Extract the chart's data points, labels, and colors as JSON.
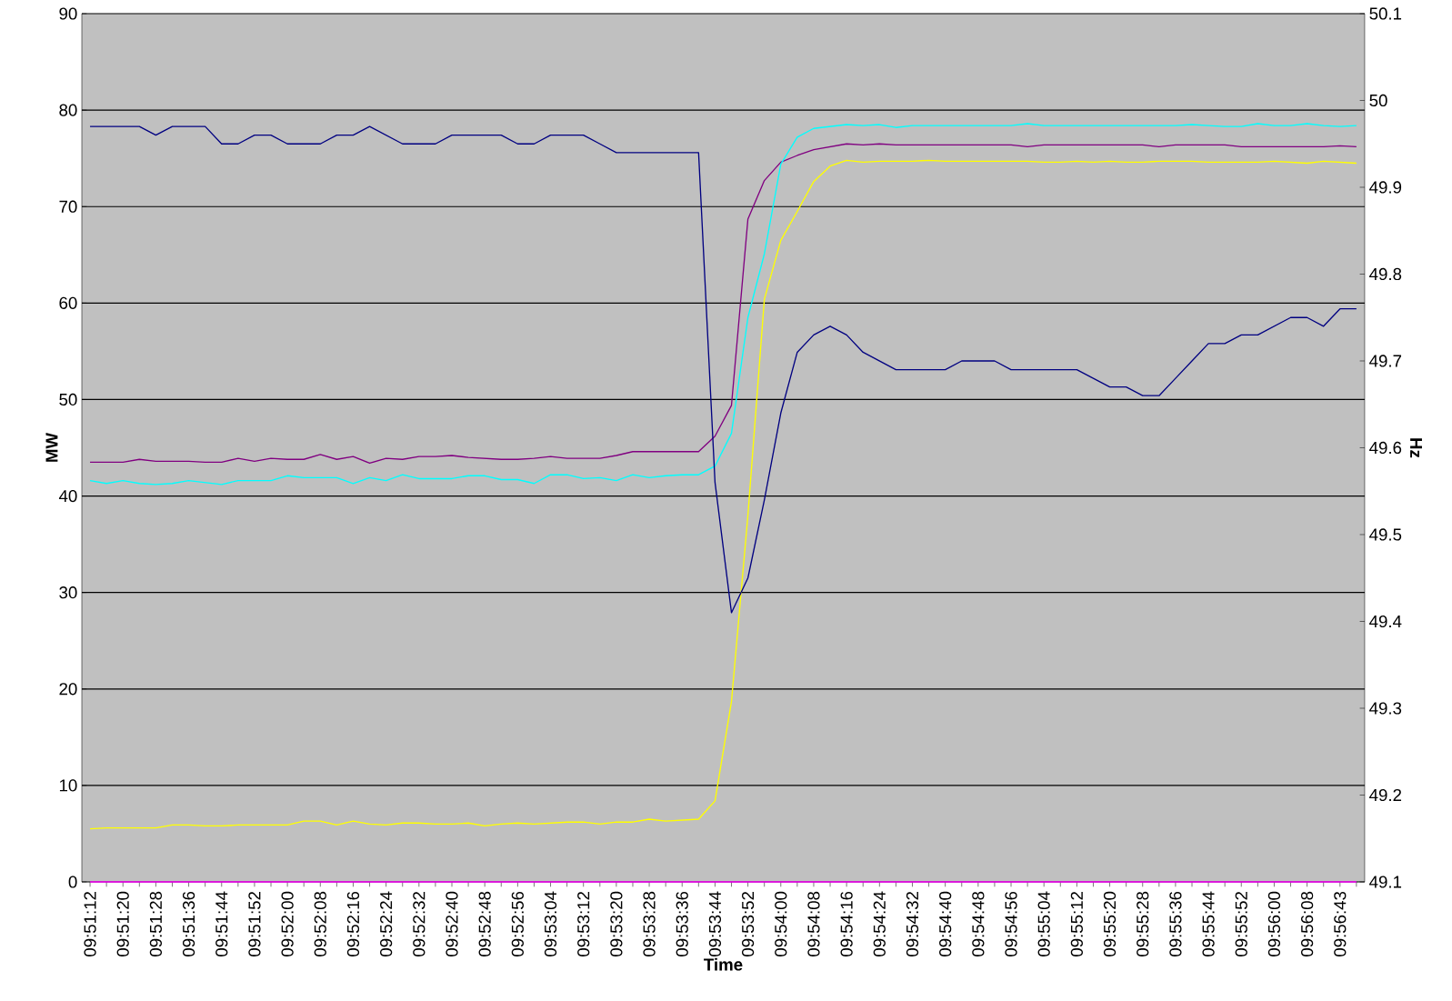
{
  "chart_data": {
    "type": "line",
    "xlabel": "Time",
    "ylabel": "MW",
    "y2label": "Hz",
    "categories": [
      "09:51:12",
      null,
      "09:51:20",
      null,
      "09:51:28",
      null,
      "09:51:36",
      null,
      "09:51:44",
      null,
      "09:51:52",
      null,
      "09:52:00",
      null,
      "09:52:08",
      null,
      "09:52:16",
      null,
      "09:52:24",
      null,
      "09:52:32",
      null,
      "09:52:40",
      null,
      "09:52:48",
      null,
      "09:52:56",
      null,
      "09:53:04",
      null,
      "09:53:12",
      null,
      "09:53:20",
      null,
      "09:53:28",
      null,
      "09:53:36",
      null,
      "09:53:44",
      null,
      "09:53:52",
      null,
      "09:54:00",
      null,
      "09:54:08",
      null,
      "09:54:16",
      null,
      "09:54:24",
      null,
      "09:54:32",
      null,
      "09:54:40",
      null,
      "09:54:48",
      null,
      "09:54:56",
      null,
      "09:55:04",
      null,
      "09:55:12",
      null,
      "09:55:20",
      null,
      "09:55:28",
      null,
      "09:55:36",
      null,
      "09:55:44",
      null,
      "09:55:52",
      null,
      "09:56:00",
      null,
      "09:56:08",
      null,
      "09:56:43",
      null
    ],
    "ylim": [
      0,
      90
    ],
    "yticks": [
      0,
      10,
      20,
      30,
      40,
      50,
      60,
      70,
      80,
      90
    ],
    "y2lim": [
      49.1,
      50.1
    ],
    "y2ticks": [
      49.1,
      49.2,
      49.3,
      49.4,
      49.5,
      49.6,
      49.7,
      49.8,
      49.9,
      50,
      50.1
    ],
    "grid": "y",
    "marker": "none",
    "line_style": "solid",
    "series": [
      {
        "color": "#000080",
        "axis": "y2",
        "values": [
          49.97,
          49.97,
          49.97,
          49.97,
          49.96,
          49.97,
          49.97,
          49.97,
          49.95,
          49.95,
          49.96,
          49.96,
          49.95,
          49.95,
          49.95,
          49.96,
          49.96,
          49.97,
          49.96,
          49.95,
          49.95,
          49.95,
          49.96,
          49.96,
          49.96,
          49.96,
          49.95,
          49.95,
          49.96,
          49.96,
          49.96,
          49.95,
          49.94,
          49.94,
          49.94,
          49.94,
          49.94,
          49.94,
          49.56,
          49.41,
          49.45,
          49.54,
          49.64,
          49.71,
          49.73,
          49.74,
          49.73,
          49.71,
          49.7,
          49.69,
          49.69,
          49.69,
          49.69,
          49.7,
          49.7,
          49.7,
          49.69,
          49.69,
          49.69,
          49.69,
          49.69,
          49.68,
          49.67,
          49.67,
          49.66,
          49.66,
          49.68,
          49.7,
          49.72,
          49.72,
          49.73,
          49.73,
          49.74,
          49.75,
          49.75,
          49.74,
          49.76,
          49.76
        ]
      },
      {
        "color": "#800080",
        "values": [
          43.5,
          43.5,
          43.5,
          43.8,
          43.6,
          43.6,
          43.6,
          43.5,
          43.5,
          43.9,
          43.6,
          43.9,
          43.8,
          43.8,
          44.3,
          43.8,
          44.1,
          43.4,
          43.9,
          43.8,
          44.1,
          44.1,
          44.2,
          44.0,
          43.9,
          43.8,
          43.8,
          43.9,
          44.1,
          43.9,
          43.9,
          43.9,
          44.2,
          44.6,
          44.6,
          44.6,
          44.6,
          44.6,
          46.2,
          49.4,
          68.7,
          72.7,
          74.6,
          75.3,
          75.9,
          76.2,
          76.5,
          76.4,
          76.5,
          76.4,
          76.4,
          76.4,
          76.4,
          76.4,
          76.4,
          76.4,
          76.4,
          76.2,
          76.4,
          76.4,
          76.4,
          76.4,
          76.4,
          76.4,
          76.4,
          76.2,
          76.4,
          76.4,
          76.4,
          76.4,
          76.2,
          76.2,
          76.2,
          76.2,
          76.2,
          76.2,
          76.3,
          76.2
        ]
      },
      {
        "color": "#00ffff",
        "values": [
          41.6,
          41.3,
          41.6,
          41.3,
          41.2,
          41.3,
          41.6,
          41.4,
          41.2,
          41.6,
          41.6,
          41.6,
          42.1,
          41.9,
          41.9,
          41.9,
          41.3,
          41.9,
          41.6,
          42.2,
          41.8,
          41.8,
          41.8,
          42.1,
          42.1,
          41.7,
          41.7,
          41.3,
          42.2,
          42.2,
          41.8,
          41.9,
          41.6,
          42.2,
          41.9,
          42.1,
          42.2,
          42.2,
          43.1,
          46.5,
          58.5,
          65.1,
          74.4,
          77.2,
          78.1,
          78.3,
          78.5,
          78.4,
          78.5,
          78.2,
          78.4,
          78.4,
          78.4,
          78.4,
          78.4,
          78.4,
          78.4,
          78.6,
          78.4,
          78.4,
          78.4,
          78.4,
          78.4,
          78.4,
          78.4,
          78.4,
          78.4,
          78.5,
          78.4,
          78.3,
          78.3,
          78.6,
          78.4,
          78.4,
          78.6,
          78.4,
          78.3,
          78.4
        ]
      },
      {
        "color": "#ffff00",
        "values": [
          5.5,
          5.6,
          5.6,
          5.6,
          5.6,
          5.9,
          5.9,
          5.8,
          5.8,
          5.9,
          5.9,
          5.9,
          5.9,
          6.3,
          6.3,
          5.9,
          6.3,
          6.0,
          5.9,
          6.1,
          6.1,
          6.0,
          6.0,
          6.1,
          5.8,
          6.0,
          6.1,
          6.0,
          6.1,
          6.2,
          6.2,
          6.0,
          6.2,
          6.2,
          6.5,
          6.3,
          6.4,
          6.5,
          8.4,
          18.7,
          38.0,
          60.4,
          66.5,
          69.5,
          72.6,
          74.2,
          74.8,
          74.6,
          74.7,
          74.7,
          74.7,
          74.8,
          74.7,
          74.7,
          74.7,
          74.7,
          74.7,
          74.7,
          74.6,
          74.6,
          74.7,
          74.6,
          74.7,
          74.6,
          74.6,
          74.7,
          74.7,
          74.7,
          74.6,
          74.6,
          74.6,
          74.6,
          74.7,
          74.6,
          74.5,
          74.7,
          74.6,
          74.5
        ]
      },
      {
        "color": "#ff00ff",
        "values": [
          0,
          0,
          0,
          0,
          0,
          0,
          0,
          0,
          0,
          0,
          0,
          0,
          0,
          0,
          0,
          0,
          0,
          0,
          0,
          0,
          0,
          0,
          0,
          0,
          0,
          0,
          0,
          0,
          0,
          0,
          0,
          0,
          0,
          0,
          0,
          0,
          0,
          0,
          0,
          0,
          0,
          0,
          0,
          0,
          0,
          0,
          0,
          0,
          0,
          0,
          0,
          0,
          0,
          0,
          0,
          0,
          0,
          0,
          0,
          0,
          0,
          0,
          0,
          0,
          0,
          0,
          0,
          0,
          0,
          0,
          0,
          0,
          0,
          0,
          0,
          0,
          0,
          0
        ]
      }
    ]
  }
}
